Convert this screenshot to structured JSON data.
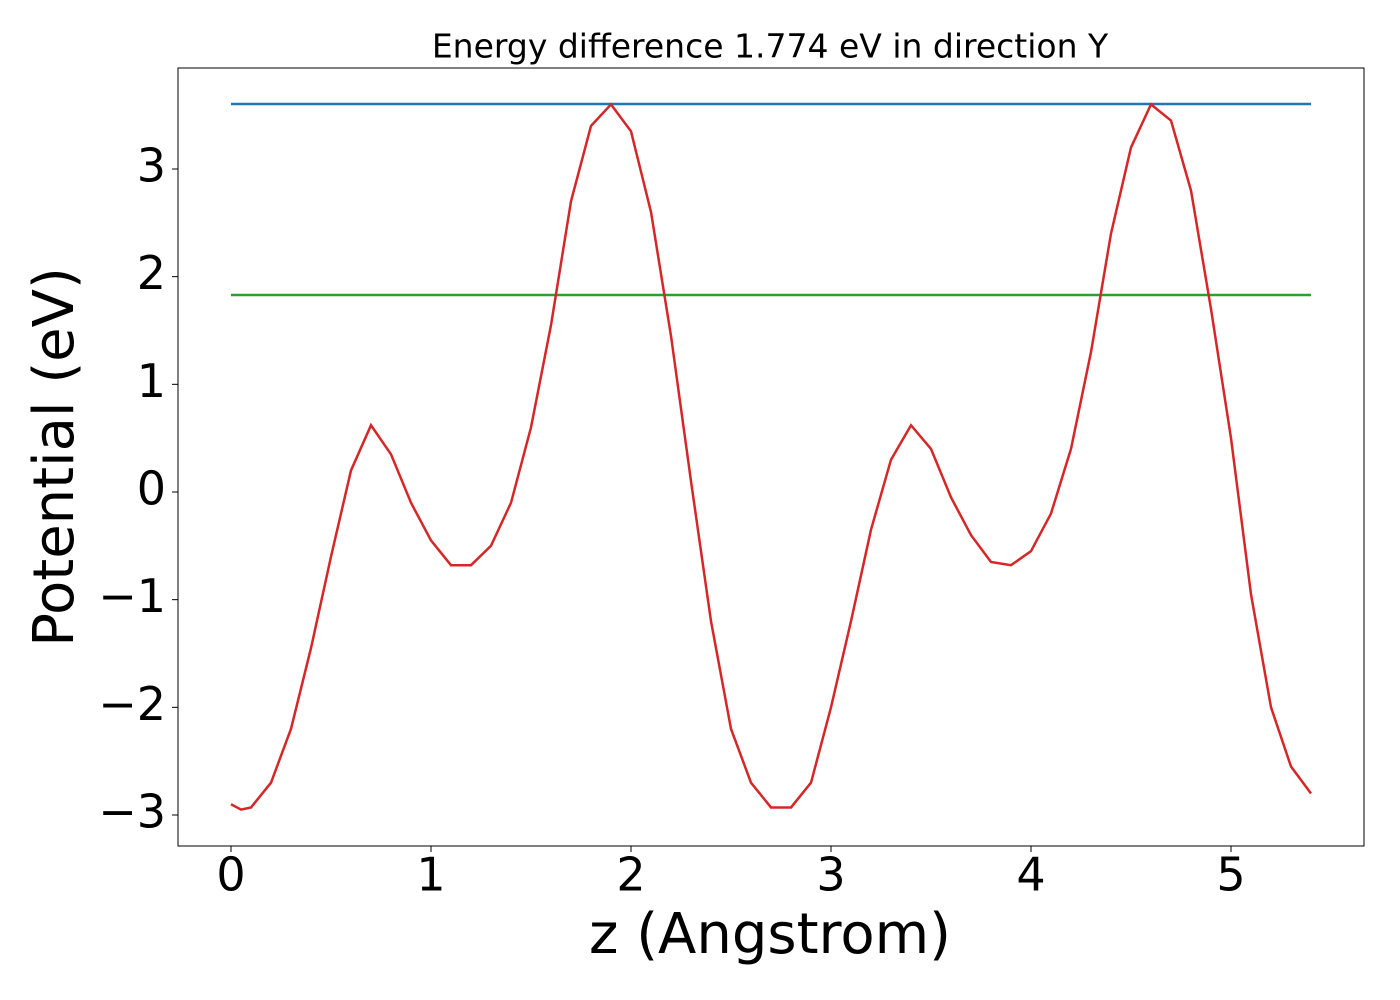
{
  "chart_data": {
    "type": "line",
    "title": "Energy difference 1.774 eV in direction Y",
    "xlabel": "z (Angstrom)",
    "ylabel": "Potential (eV)",
    "xlim": [
      -0.265,
      5.665
    ],
    "ylim": [
      -3.288,
      3.938
    ],
    "xticks": [
      0,
      1,
      2,
      3,
      4,
      5
    ],
    "yticks": [
      {
        "value": -3,
        "label": "−3"
      },
      {
        "value": -2,
        "label": "−2"
      },
      {
        "value": -1,
        "label": "−1"
      },
      0,
      1,
      2,
      3
    ],
    "grid": false,
    "series": [
      {
        "color": "#d62728",
        "x": [
          0,
          0.05,
          0.1,
          0.2,
          0.3,
          0.4,
          0.5,
          0.6,
          0.7,
          0.8,
          0.9,
          1.0,
          1.1,
          1.2,
          1.3,
          1.4,
          1.5,
          1.6,
          1.7,
          1.8,
          1.9,
          2.0,
          2.1,
          2.2,
          2.3,
          2.4,
          2.5,
          2.6,
          2.7,
          2.8,
          2.9,
          3.0,
          3.1,
          3.2,
          3.3,
          3.4,
          3.5,
          3.6,
          3.7,
          3.8,
          3.9,
          4.0,
          4.1,
          4.2,
          4.3,
          4.4,
          4.5,
          4.6,
          4.7,
          4.8,
          4.9,
          5.0,
          5.1,
          5.2,
          5.3,
          5.4
        ],
        "values": [
          -2.9,
          -2.95,
          -2.93,
          -2.7,
          -2.2,
          -1.45,
          -0.6,
          0.2,
          0.62,
          0.35,
          -0.1,
          -0.45,
          -0.68,
          -0.68,
          -0.5,
          -0.1,
          0.6,
          1.55,
          2.7,
          3.4,
          3.6,
          3.35,
          2.6,
          1.45,
          0.1,
          -1.2,
          -2.2,
          -2.7,
          -2.93,
          -2.93,
          -2.7,
          -2.0,
          -1.2,
          -0.35,
          0.3,
          0.62,
          0.4,
          -0.05,
          -0.4,
          -0.65,
          -0.68,
          -0.55,
          -0.2,
          0.4,
          1.3,
          2.4,
          3.2,
          3.6,
          3.45,
          2.8,
          1.7,
          0.5,
          -0.95,
          -2.0,
          -2.55,
          -2.8
        ]
      },
      {
        "color": "#1f77b4",
        "x": [
          0,
          5.4
        ],
        "values": [
          3.604,
          3.604
        ]
      },
      {
        "color": "#2ca02c",
        "x": [
          0,
          5.4
        ],
        "values": [
          1.83,
          1.83
        ]
      }
    ]
  }
}
